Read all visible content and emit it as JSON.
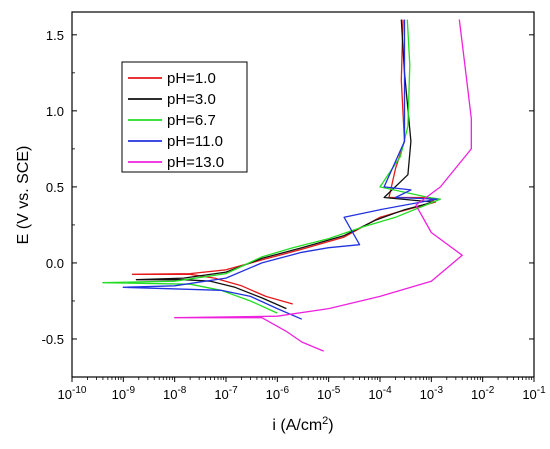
{
  "chart_data": {
    "type": "line",
    "xlabel": "i (A/cm",
    "xlabel_sup": "2",
    "xlabel_end": ")",
    "ylabel": "E (V vs. SCE)",
    "xscale": "log",
    "xlim": [
      1e-10,
      0.1
    ],
    "ylim": [
      -0.75,
      1.65
    ],
    "grid": false,
    "legend_position": "upper-left",
    "x_ticks": [
      {
        "base": "10",
        "exp": "-10"
      },
      {
        "base": "10",
        "exp": "-9"
      },
      {
        "base": "10",
        "exp": "-8"
      },
      {
        "base": "10",
        "exp": "-7"
      },
      {
        "base": "10",
        "exp": "-6"
      },
      {
        "base": "10",
        "exp": "-5"
      },
      {
        "base": "10",
        "exp": "-4"
      },
      {
        "base": "10",
        "exp": "-3"
      },
      {
        "base": "10",
        "exp": "-2"
      },
      {
        "base": "10",
        "exp": "-1"
      }
    ],
    "y_ticks": [
      "-0.5",
      "0.0",
      "0.5",
      "1.0",
      "1.5"
    ],
    "y_tick_values": [
      -0.5,
      0.0,
      0.5,
      1.0,
      1.5
    ],
    "series": [
      {
        "name": "pH=1.0",
        "color": "#e41a1c",
        "points": [
          [
            2e-06,
            -0.27
          ],
          [
            6e-07,
            -0.22
          ],
          [
            2e-07,
            -0.15
          ],
          [
            6e-08,
            -0.1
          ],
          [
            2e-08,
            -0.075
          ],
          [
            1.5e-09,
            -0.075
          ],
          [
            2e-08,
            -0.07
          ],
          [
            1e-07,
            -0.045
          ],
          [
            5e-07,
            0.02
          ],
          [
            3e-06,
            0.09
          ],
          [
            2e-05,
            0.17
          ],
          [
            0.0001,
            0.3
          ],
          [
            0.0002,
            0.33
          ],
          [
            0.0012,
            0.4
          ],
          [
            0.0008,
            0.43
          ],
          [
            0.00015,
            0.43
          ],
          [
            0.0002,
            0.62
          ],
          [
            0.0003,
            0.8
          ],
          [
            0.00026,
            1.2
          ],
          [
            0.00028,
            1.6
          ]
        ]
      },
      {
        "name": "pH=3.0",
        "color": "#111111",
        "points": [
          [
            1.5e-06,
            -0.3
          ],
          [
            5e-07,
            -0.23
          ],
          [
            1.5e-07,
            -0.16
          ],
          [
            5e-08,
            -0.12
          ],
          [
            1.5e-08,
            -0.11
          ],
          [
            1.8e-09,
            -0.11
          ],
          [
            1.5e-08,
            -0.1
          ],
          [
            1e-07,
            -0.06
          ],
          [
            5e-07,
            0.03
          ],
          [
            3e-06,
            0.1
          ],
          [
            2e-05,
            0.18
          ],
          [
            8e-05,
            0.28
          ],
          [
            0.0003,
            0.35
          ],
          [
            0.0011,
            0.4
          ],
          [
            0.00012,
            0.43
          ],
          [
            0.00035,
            0.58
          ],
          [
            0.0004,
            0.8
          ],
          [
            0.0003,
            1.25
          ],
          [
            0.00026,
            1.6
          ]
        ]
      },
      {
        "name": "pH=6.7",
        "color": "#22dd22",
        "points": [
          [
            1e-06,
            -0.33
          ],
          [
            3e-07,
            -0.25
          ],
          [
            8e-08,
            -0.18
          ],
          [
            2e-08,
            -0.14
          ],
          [
            4e-10,
            -0.13
          ],
          [
            1e-08,
            -0.12
          ],
          [
            1e-07,
            -0.07
          ],
          [
            5e-07,
            0.04
          ],
          [
            2e-06,
            0.1
          ],
          [
            1e-05,
            0.16
          ],
          [
            5e-05,
            0.24
          ],
          [
            0.0002,
            0.3
          ],
          [
            0.0015,
            0.42
          ],
          [
            0.0009,
            0.43
          ],
          [
            0.0001,
            0.5
          ],
          [
            0.00025,
            0.7
          ],
          [
            0.00035,
            0.9
          ],
          [
            0.00038,
            1.3
          ],
          [
            0.00034,
            1.6
          ]
        ]
      },
      {
        "name": "pH=11.0",
        "color": "#2233dd",
        "points": [
          [
            3e-06,
            -0.37
          ],
          [
            1e-06,
            -0.3
          ],
          [
            3e-07,
            -0.22
          ],
          [
            8e-08,
            -0.18
          ],
          [
            1e-09,
            -0.16
          ],
          [
            1e-08,
            -0.15
          ],
          [
            1e-07,
            -0.1
          ],
          [
            5e-07,
            0.0
          ],
          [
            3e-06,
            0.07
          ],
          [
            1e-05,
            0.1
          ],
          [
            4e-05,
            0.12
          ],
          [
            2e-05,
            0.3
          ],
          [
            0.0001,
            0.35
          ],
          [
            0.0013,
            0.42
          ],
          [
            0.0002,
            0.43
          ],
          [
            0.0004,
            0.48
          ],
          [
            0.00012,
            0.5
          ],
          [
            0.0003,
            0.8
          ],
          [
            0.0003,
            1.2
          ],
          [
            0.0003,
            1.6
          ]
        ]
      },
      {
        "name": "pH=13.0",
        "color": "#ee22dd",
        "points": [
          [
            8e-06,
            -0.58
          ],
          [
            3e-06,
            -0.52
          ],
          [
            1.5e-06,
            -0.45
          ],
          [
            5e-07,
            -0.36
          ],
          [
            1e-08,
            -0.36
          ],
          [
            1e-06,
            -0.35
          ],
          [
            1e-05,
            -0.3
          ],
          [
            0.0001,
            -0.22
          ],
          [
            0.001,
            -0.12
          ],
          [
            0.004,
            0.05
          ],
          [
            0.001,
            0.2
          ],
          [
            0.0005,
            0.38
          ],
          [
            0.0015,
            0.5
          ],
          [
            0.006,
            0.75
          ],
          [
            0.006,
            0.95
          ],
          [
            0.0045,
            1.3
          ],
          [
            0.0035,
            1.6
          ]
        ]
      }
    ]
  }
}
